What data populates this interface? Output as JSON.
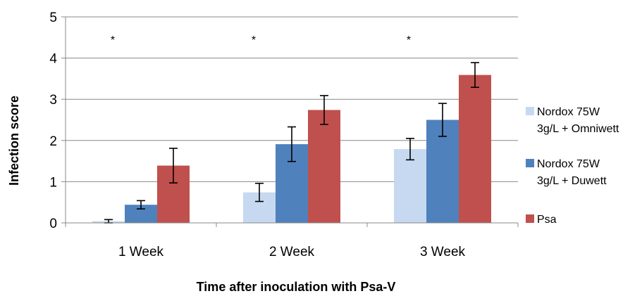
{
  "chart_data": {
    "type": "bar",
    "title": "",
    "xlabel": "Time after inoculation with Psa-V",
    "ylabel": "Infection score",
    "categories": [
      "1 Week",
      "2 Week",
      "3 Week"
    ],
    "ylim": [
      0,
      5
    ],
    "yticks": [
      "0",
      "1",
      "2",
      "3",
      "4",
      "5"
    ],
    "grid": true,
    "legend_position": "right",
    "series": [
      {
        "name": "Nordox 75W 3g/L + Omniwett",
        "legend_lines": [
          "Nordox 75W",
          "3g/L + Omniwett"
        ],
        "color": "#c6d9f1",
        "values": [
          0.04,
          0.74,
          1.79
        ],
        "errors": [
          0.04,
          0.22,
          0.26
        ]
      },
      {
        "name": "Nordox 75W 3g/L + Duwett",
        "legend_lines": [
          "Nordox 75W",
          "3g/L + Duwett"
        ],
        "color": "#4f81bd",
        "values": [
          0.44,
          1.91,
          2.5
        ],
        "errors": [
          0.1,
          0.42,
          0.4
        ]
      },
      {
        "name": "Psa",
        "legend_lines": [
          "Psa"
        ],
        "color": "#c0504d",
        "values": [
          1.39,
          2.74,
          3.59
        ],
        "errors": [
          0.42,
          0.35,
          0.3
        ]
      }
    ],
    "annotations": [
      {
        "category": "1 Week",
        "text": "*"
      },
      {
        "category": "2 Week",
        "text": "*"
      },
      {
        "category": "3 Week",
        "text": "*"
      }
    ]
  }
}
